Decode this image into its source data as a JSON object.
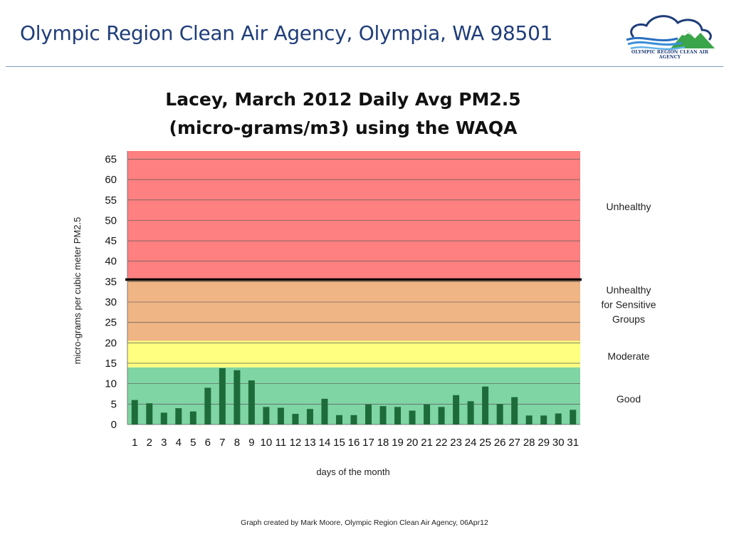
{
  "header": {
    "title": "Olympic Region Clean Air Agency, Olympia, WA 98501",
    "logo_text": "OLYMPIC REGION CLEAN AIR AGENCY"
  },
  "footer": {
    "text": "Graph created by Mark Moore, Olympic Region Clean Air Agency, 06Apr12"
  },
  "chart_data": {
    "type": "bar",
    "title_lines": [
      "Lacey, March 2012 Daily Avg PM2.5",
      "(micro-grams/m3) using the WAQA"
    ],
    "xlabel": "days of the month",
    "ylabel": "micro-grams per cubic meter PM2.5",
    "ylim": [
      0,
      67
    ],
    "yticks": [
      0,
      5,
      10,
      15,
      20,
      25,
      30,
      35,
      40,
      45,
      50,
      55,
      60,
      65
    ],
    "grid": true,
    "categories": [
      "1",
      "2",
      "3",
      "4",
      "5",
      "6",
      "7",
      "8",
      "9",
      "10",
      "11",
      "12",
      "13",
      "14",
      "15",
      "16",
      "17",
      "18",
      "19",
      "20",
      "21",
      "22",
      "23",
      "24",
      "25",
      "26",
      "27",
      "28",
      "29",
      "30",
      "31"
    ],
    "values": [
      6.0,
      5.2,
      2.9,
      4.0,
      3.2,
      9.0,
      13.8,
      13.3,
      10.8,
      4.3,
      4.1,
      2.6,
      3.8,
      6.3,
      2.3,
      2.3,
      4.9,
      4.5,
      4.3,
      3.4,
      4.9,
      4.3,
      7.2,
      5.7,
      9.3,
      5.0,
      6.7,
      2.2,
      2.2,
      2.7,
      3.6
    ],
    "bar_color": "#1e6b3a",
    "threshold_line": 35.5,
    "zones": [
      {
        "label": "Good",
        "from": 0,
        "to": 14,
        "color": "#7fd5a4"
      },
      {
        "label": "Moderate",
        "from": 14,
        "to": 20.5,
        "color": "#ffff80"
      },
      {
        "label": "Unhealthy for Sensitive Groups",
        "from": 20.5,
        "to": 35.5,
        "color": "#f0b584"
      },
      {
        "label": "Unhealthy",
        "from": 35.5,
        "to": 67,
        "color": "#ff8080"
      }
    ]
  }
}
